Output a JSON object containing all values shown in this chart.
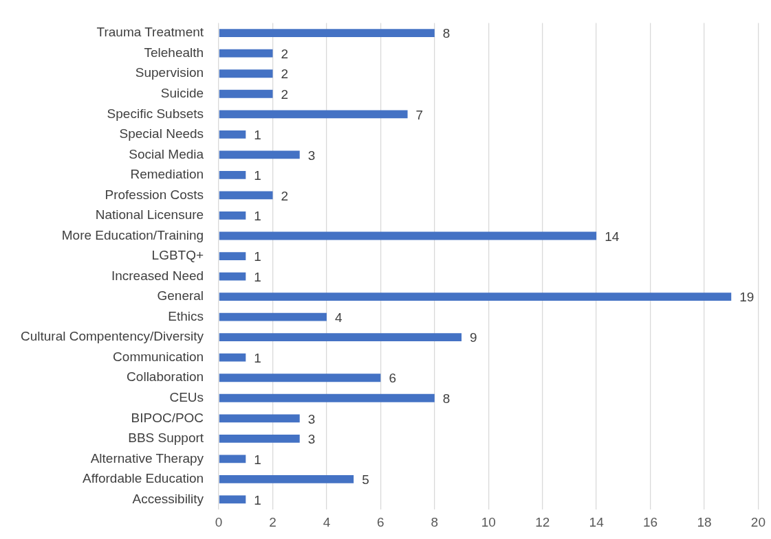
{
  "chart_data": {
    "type": "bar",
    "orientation": "horizontal",
    "categories": [
      "Trauma Treatment",
      "Telehealth",
      "Supervision",
      "Suicide",
      "Specific Subsets",
      "Special Needs",
      "Social Media",
      "Remediation",
      "Profession Costs",
      "National Licensure",
      "More Education/Training",
      "LGBTQ+",
      "Increased Need",
      "General",
      "Ethics",
      "Cultural Compentency/Diversity",
      "Communication",
      "Collaboration",
      "CEUs",
      "BIPOC/POC",
      "BBS Support",
      "Alternative Therapy",
      "Affordable Education",
      "Accessibility"
    ],
    "values": [
      8,
      2,
      2,
      2,
      7,
      1,
      3,
      1,
      2,
      1,
      14,
      1,
      1,
      19,
      4,
      9,
      1,
      6,
      8,
      3,
      3,
      1,
      5,
      1
    ],
    "color": "#4472c4",
    "xlim": [
      0,
      20
    ],
    "xticks": [
      0,
      2,
      4,
      6,
      8,
      10,
      12,
      14,
      16,
      18,
      20
    ],
    "grid": "x",
    "data_labels": true,
    "legend": false
  }
}
